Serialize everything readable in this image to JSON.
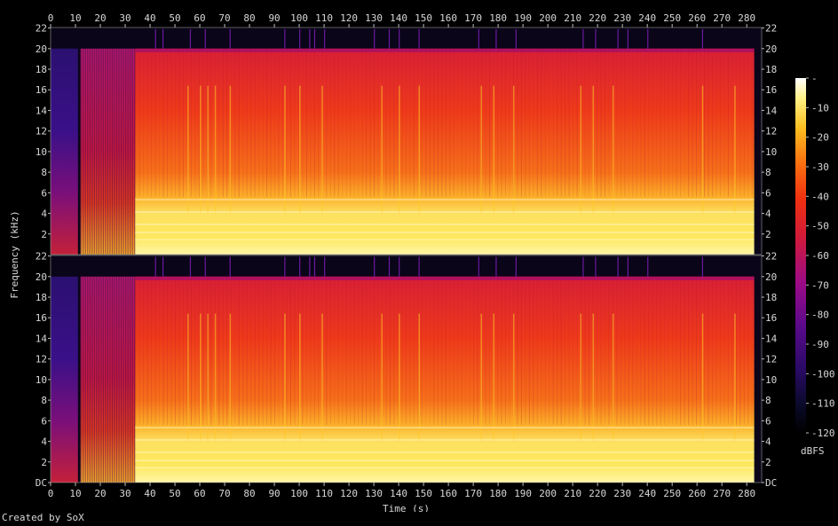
{
  "credit": "Created by SoX",
  "chart_data": {
    "type": "heatmap",
    "title": "",
    "xlabel": "Time (s)",
    "ylabel": "Frequency (kHz)",
    "x_range": [
      0,
      286
    ],
    "x_ticks": [
      0,
      10,
      20,
      30,
      40,
      50,
      60,
      70,
      80,
      90,
      100,
      110,
      120,
      130,
      140,
      150,
      160,
      170,
      180,
      190,
      200,
      210,
      220,
      230,
      240,
      250,
      260,
      270,
      280
    ],
    "channels": [
      {
        "name": "",
        "y_range_khz": [
          0,
          22.05
        ],
        "y_tick_labels": [
          "22",
          "20",
          "18",
          "16",
          "14",
          "12",
          "10",
          "8",
          "6",
          "4",
          "2"
        ]
      },
      {
        "name": "",
        "y_range_khz": [
          0,
          22.05
        ],
        "y_tick_labels": [
          "22",
          "20",
          "18",
          "16",
          "14",
          "12",
          "10",
          "8",
          "6",
          "4",
          "2",
          "DC"
        ]
      }
    ],
    "spectral_cutoff_khz": 20,
    "sections": [
      {
        "start": 0,
        "end": 11,
        "level": "dark/purple upper band, faint low content"
      },
      {
        "start": 12,
        "end": 34,
        "level": "purple/red striated"
      },
      {
        "start": 34,
        "end": 283,
        "level": "red/orange with bright yellow below ~6 kHz"
      }
    ],
    "colorbar": {
      "label": "dBFS",
      "range": [
        -120,
        0
      ],
      "ticks": [
        "-",
        "-10",
        "-20",
        "-30",
        "-40",
        "-50",
        "-60",
        "-70",
        "-80",
        "-90",
        "-100",
        "-110",
        "-120"
      ]
    }
  }
}
